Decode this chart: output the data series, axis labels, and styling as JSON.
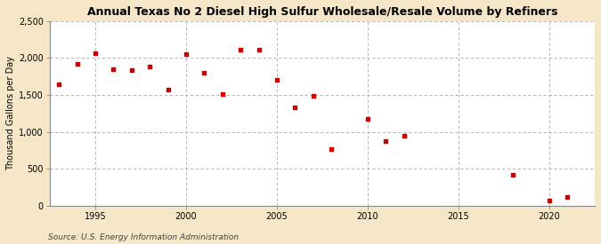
{
  "title": "Annual Texas No 2 Diesel High Sulfur Wholesale/Resale Volume by Refiners",
  "ylabel": "Thousand Gallons per Day",
  "source": "Source: U.S. Energy Information Administration",
  "background_color": "#f5e6c8",
  "plot_bg_color": "#ffffff",
  "point_color": "#cc0000",
  "grid_color": "#aaaaaa",
  "xlim": [
    1992.5,
    2022.5
  ],
  "ylim": [
    0,
    2500
  ],
  "xticks": [
    1995,
    2000,
    2005,
    2010,
    2015,
    2020
  ],
  "yticks": [
    0,
    500,
    1000,
    1500,
    2000,
    2500
  ],
  "data_points": [
    [
      1993,
      1650
    ],
    [
      1994,
      1920
    ],
    [
      1995,
      2060
    ],
    [
      1996,
      1855
    ],
    [
      1997,
      1840
    ],
    [
      1998,
      1880
    ],
    [
      1999,
      1570
    ],
    [
      2000,
      2050
    ],
    [
      2001,
      1800
    ],
    [
      2002,
      1510
    ],
    [
      2003,
      2110
    ],
    [
      2004,
      2110
    ],
    [
      2005,
      1700
    ],
    [
      2006,
      1330
    ],
    [
      2007,
      1490
    ],
    [
      2008,
      770
    ],
    [
      2010,
      1175
    ],
    [
      2011,
      870
    ],
    [
      2012,
      945
    ],
    [
      2018,
      415
    ],
    [
      2020,
      75
    ],
    [
      2021,
      120
    ]
  ]
}
